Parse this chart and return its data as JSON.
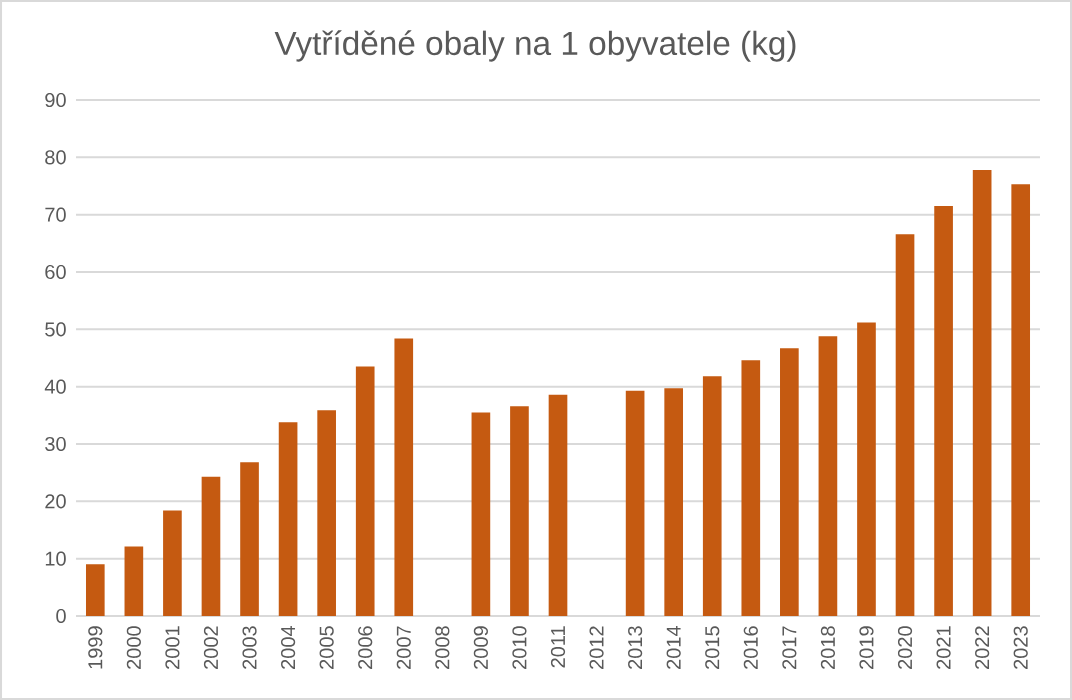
{
  "chart_data": {
    "type": "bar",
    "title": "Vytříděné obaly na 1 obyvatele (kg)",
    "categories": [
      "1999",
      "2000",
      "2001",
      "2002",
      "2003",
      "2004",
      "2005",
      "2006",
      "2007",
      "2008",
      "2009",
      "2010",
      "2011",
      "2012",
      "2013",
      "2014",
      "2015",
      "2016",
      "2017",
      "2018",
      "2019",
      "2020",
      "2021",
      "2022",
      "2023"
    ],
    "values": [
      9.0,
      12.1,
      18.4,
      24.3,
      26.8,
      33.8,
      35.9,
      43.5,
      48.4,
      null,
      35.5,
      36.6,
      38.6,
      null,
      39.3,
      39.7,
      41.8,
      44.6,
      46.7,
      48.8,
      51.2,
      66.6,
      71.5,
      77.8,
      75.3
    ],
    "color": "#c55a11",
    "ylim": [
      0,
      90
    ],
    "yticks": [
      0,
      10,
      20,
      30,
      40,
      50,
      60,
      70,
      80,
      90
    ],
    "grid": "y"
  }
}
